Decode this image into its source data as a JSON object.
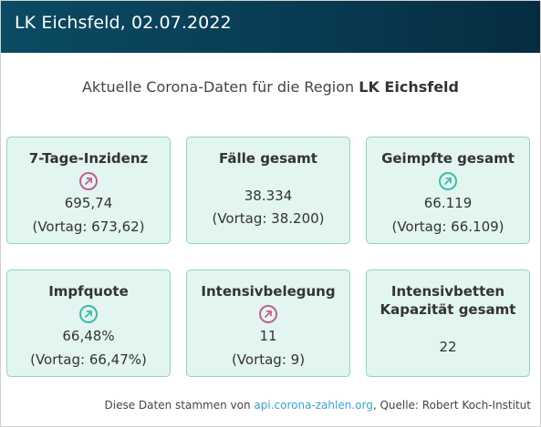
{
  "header": {
    "title": "LK Eichsfeld, 02.07.2022"
  },
  "subtitle": {
    "prefix": "Aktuelle Corona-Daten für die Region ",
    "region": "LK Eichsfeld"
  },
  "cards": [
    {
      "title": "7-Tage-Inzidenz",
      "icon": "trend-up-icon",
      "trend_color": "#c06090",
      "value": "695,74",
      "previous": "(Vortag: 673,62)"
    },
    {
      "title": "Fälle gesamt",
      "value": "38.334",
      "previous": "(Vortag: 38.200)"
    },
    {
      "title": "Geimpfte gesamt",
      "icon": "trend-up-icon",
      "trend_color": "#3cbca8",
      "value": "66.119",
      "previous": "(Vortag: 66.109)"
    },
    {
      "title": "Impfquote",
      "icon": "trend-up-icon",
      "trend_color": "#3cbca8",
      "value": "66,48%",
      "previous": "(Vortag: 66,47%)"
    },
    {
      "title": "Intensivbelegung",
      "icon": "trend-up-icon",
      "trend_color": "#c06090",
      "value": "11",
      "previous": "(Vortag: 9)"
    },
    {
      "title_line1": "Intensivbetten",
      "title_line2": "Kapazität gesamt",
      "value": "22"
    }
  ],
  "footer": {
    "text_before": "Diese Daten stammen von ",
    "link_text": "api.corona-zahlen.org",
    "text_after": ", Quelle: Robert Koch-Institut"
  }
}
